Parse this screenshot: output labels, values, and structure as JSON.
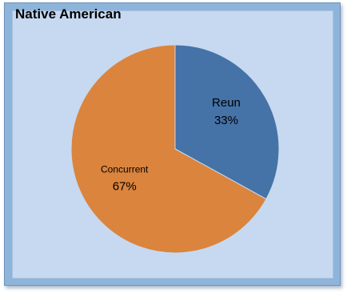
{
  "chart_data": {
    "type": "pie",
    "title": "Native American",
    "slices": [
      {
        "label": "Reun",
        "value": 33,
        "percent_label": "33%",
        "color": "#4572a7"
      },
      {
        "label": "Concurrent",
        "value": 67,
        "percent_label": "67%",
        "color": "#db843d"
      }
    ],
    "legend": "none",
    "colors": {
      "outer_frame": "#8fb4d9",
      "plot_background": "#c6d9f0"
    }
  }
}
